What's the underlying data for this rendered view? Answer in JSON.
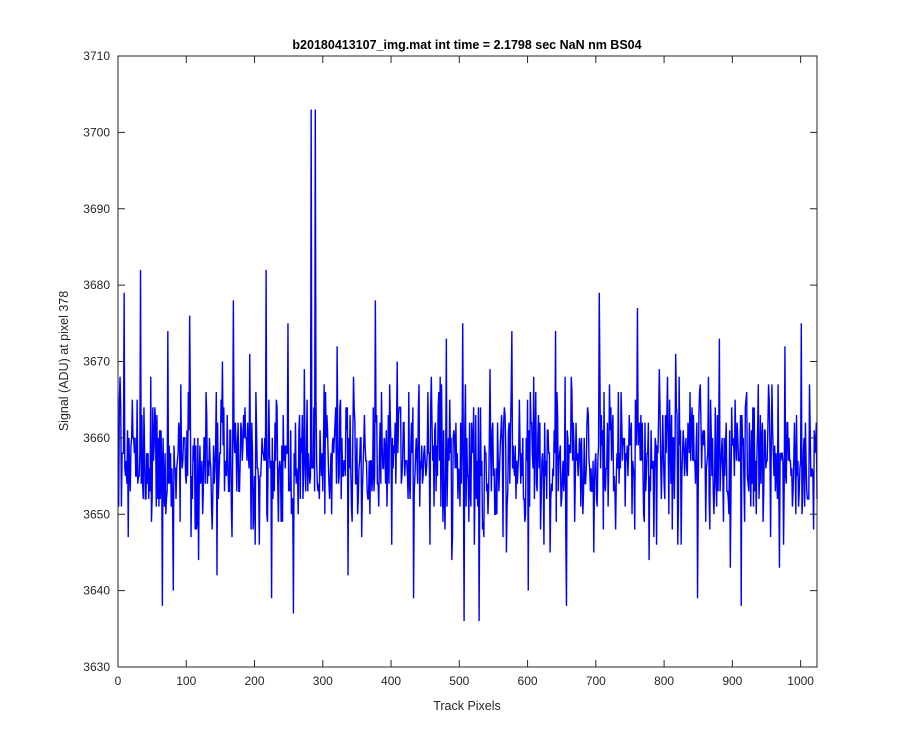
{
  "chart_data": {
    "type": "line",
    "title": "b20180413107_img.mat int time = 2.1798 sec  NaN nm BS04",
    "xlabel": "Track Pixels",
    "ylabel": "Signal (ADU) at pixel 378",
    "xlim": [
      0,
      1024
    ],
    "ylim": [
      3630,
      3710
    ],
    "xticks": [
      0,
      100,
      200,
      300,
      400,
      500,
      600,
      700,
      800,
      900,
      1000
    ],
    "yticks": [
      3630,
      3640,
      3650,
      3660,
      3670,
      3680,
      3690,
      3700,
      3710
    ],
    "grid": false,
    "legend": "none",
    "series": [
      {
        "color": "#0000ff",
        "n_points": 1024,
        "x_start": 1,
        "x_step": 1,
        "mean": 3657,
        "typical_range": [
          3640,
          3675
        ],
        "values_sampled_every_8": [
          3651,
          3679,
          3656,
          3660,
          3682,
          3652,
          3649,
          3663,
          3638,
          3674,
          3640,
          3662,
          3660,
          3676,
          3648,
          3654,
          3666,
          3651,
          3642,
          3670,
          3657,
          3678,
          3653,
          3660,
          3671,
          3646,
          3655,
          3682,
          3639,
          3664,
          3649,
          3675,
          3637,
          3661,
          3669,
          3654,
          3703,
          3657,
          3660,
          3650,
          3672,
          3655,
          3642,
          3668,
          3656,
          3663,
          3650,
          3678,
          3654,
          3661,
          3646,
          3670,
          3657,
          3652,
          3639,
          3667,
          3659,
          3646,
          3662,
          3651,
          3673,
          3644,
          3658,
          3675,
          3655,
          3664,
          3636,
          3659,
          3669,
          3650,
          3661,
          3645,
          3674,
          3654,
          3660,
          3640,
          3668,
          3656,
          3662,
          3645,
          3674,
          3651,
          3638,
          3666,
          3658,
          3650,
          3663,
          3645,
          3679,
          3654,
          3661,
          3648,
          3666,
          3657,
          3650,
          3677,
          3656,
          3662,
          3647,
          3669,
          3652,
          3660,
          3671,
          3646,
          3656,
          3664,
          3639,
          3661,
          3668,
          3650,
          3673,
          3655,
          3643,
          3660,
          3638,
          3666,
          3654,
          3661,
          3649,
          3667,
          3655,
          3643,
          3672,
          3657,
          3650,
          3675,
          3653,
          3656
        ],
        "annotations": {
          "spike": {
            "x": 283,
            "value": 3703
          },
          "minimum": {
            "x": 507,
            "value": 3636
          }
        }
      }
    ]
  }
}
